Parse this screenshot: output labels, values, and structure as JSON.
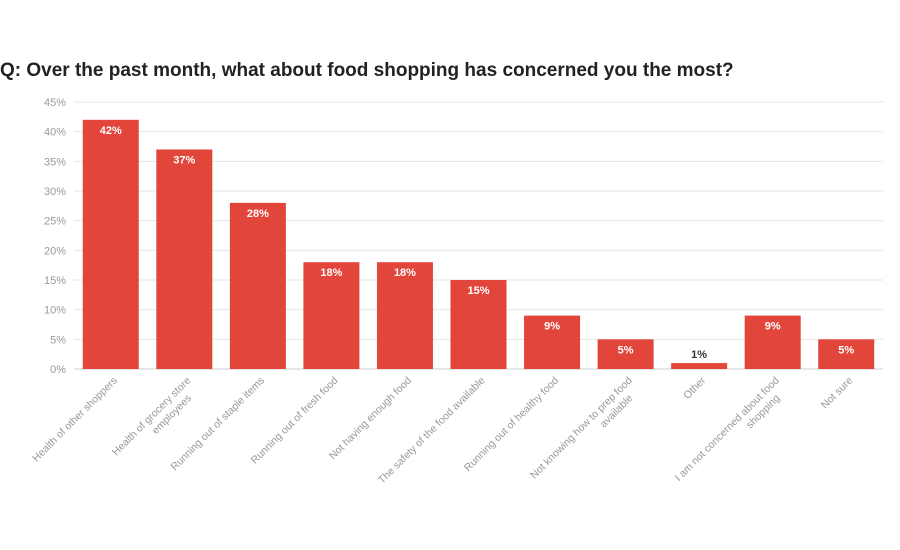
{
  "chart_data": {
    "type": "bar",
    "title": "Q: Over the past month, what about food shopping has concerned you the most?",
    "xlabel": "",
    "ylabel": "",
    "ylim": [
      0,
      45
    ],
    "yticks": [
      0,
      5,
      10,
      15,
      20,
      25,
      30,
      35,
      40,
      45
    ],
    "ytick_suffix": "%",
    "grid": true,
    "legend": "none",
    "bar_color": "#e2463a",
    "label_color_inside": "#ffffff",
    "label_color_outside": "#333333",
    "categories": [
      [
        "Health of other shoppers"
      ],
      [
        "Health of grocery store",
        "employees"
      ],
      [
        "Running out of staple items"
      ],
      [
        "Running out of fresh food"
      ],
      [
        "Not having enough food"
      ],
      [
        "The safety of the food available"
      ],
      [
        "Running out of healthy food"
      ],
      [
        "Not knowing how to prep food",
        "available"
      ],
      [
        "Other"
      ],
      [
        "I am not concerned about food",
        "shopping"
      ],
      [
        "Not sure"
      ]
    ],
    "values": [
      42,
      37,
      28,
      18,
      18,
      15,
      9,
      5,
      1,
      9,
      5
    ],
    "value_labels": [
      "42%",
      "37%",
      "28%",
      "18%",
      "18%",
      "15%",
      "9%",
      "5%",
      "1%",
      "9%",
      "5%"
    ]
  }
}
